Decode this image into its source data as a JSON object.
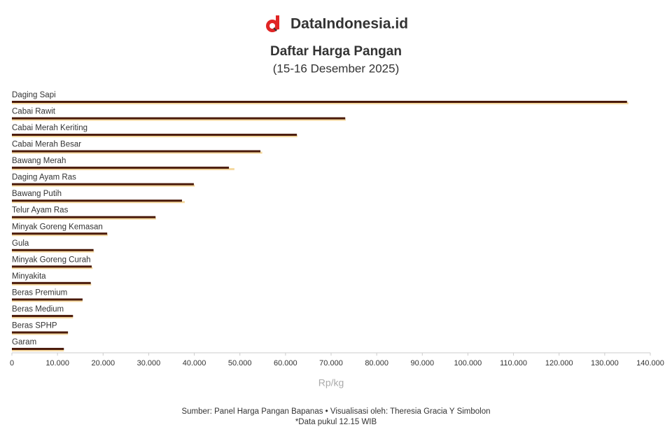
{
  "brand": "DataIndonesia.id",
  "chart_data": {
    "type": "bar",
    "orientation": "horizontal",
    "title": "Daftar Harga Pangan",
    "subtitle": "(15-16 Desember 2025)",
    "x_label": "Rp/kg",
    "categories": [
      "Daging Sapi",
      "Cabai Rawit",
      "Cabai Merah Keriting",
      "Cabai Merah Besar",
      "Bawang Merah",
      "Daging Ayam Ras",
      "Bawang Putih",
      "Telur Ayam Ras",
      "Minyak Goreng Kemasan",
      "Gula",
      "Minyak Goreng Curah",
      "Minyakita",
      "Beras Premium",
      "Beras Medium",
      "Beras SPHP",
      "Garam"
    ],
    "series": [
      {
        "color": "#f5d9a0",
        "values": [
          135200,
          73200,
          62600,
          54900,
          48800,
          40100,
          37900,
          31600,
          21000,
          18000,
          17700,
          17400,
          15500,
          13400,
          12300,
          11400
        ]
      },
      {
        "color": "#4a1a0a",
        "values": [
          134900,
          73100,
          62500,
          54500,
          47600,
          39900,
          37300,
          31500,
          20900,
          17900,
          17500,
          17300,
          15500,
          13400,
          12300,
          11400
        ]
      }
    ],
    "xlim": [
      0,
      140000
    ],
    "xticks": [
      0,
      {
        "value": 10000,
        "label": "10.000"
      },
      {
        "value": 20000,
        "label": "20.000"
      },
      {
        "value": 30000,
        "label": "30.000"
      },
      {
        "value": 40000,
        "label": "40.000"
      },
      {
        "value": 50000,
        "label": "50.000"
      },
      {
        "value": 60000,
        "label": "60.000"
      },
      {
        "value": 70000,
        "label": "70.000"
      },
      {
        "value": 80000,
        "label": "80.000"
      },
      {
        "value": 90000,
        "label": "90.000"
      },
      {
        "value": 100000,
        "label": "100.000"
      },
      {
        "value": 110000,
        "label": "110.000"
      },
      {
        "value": 120000,
        "label": "120.000"
      },
      {
        "value": 130000,
        "label": "130.000"
      },
      {
        "value": 140000,
        "label": "140.000"
      }
    ]
  },
  "footer": {
    "source": "Sumber: Panel Harga Pangan Bapanas • Visualisasi oleh: Theresia Gracia Y Simbolon",
    "note": "*Data pukul 12.15 WIB"
  }
}
